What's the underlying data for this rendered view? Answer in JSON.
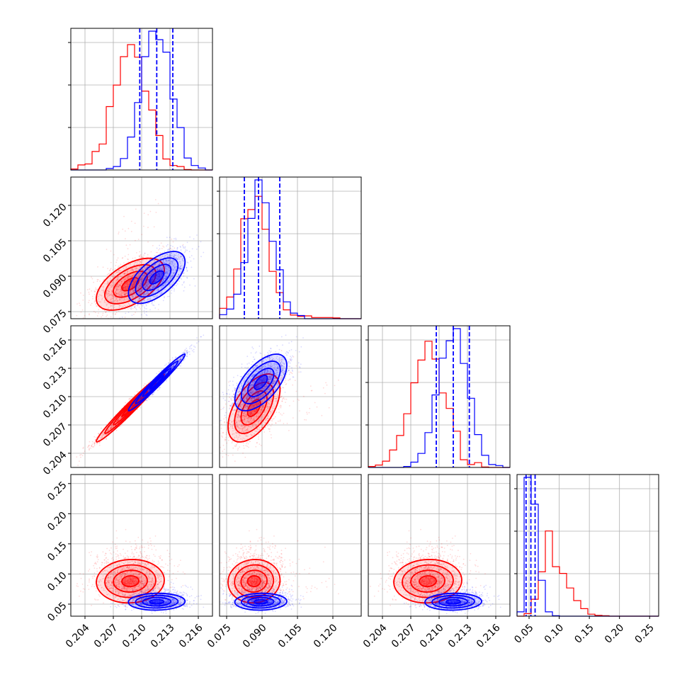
{
  "chart_data": {
    "type": "corner",
    "title": "",
    "grid": true,
    "colors": {
      "red": "#ff0000",
      "blue": "#0000ff"
    },
    "params": [
      {
        "index": 0,
        "range": [
          0.2025,
          0.2175
        ],
        "ticks": [
          0.204,
          0.207,
          0.21,
          0.213,
          0.216
        ],
        "tick_labels": [
          "0.204",
          "0.207",
          "0.210",
          "0.213",
          "0.216"
        ]
      },
      {
        "index": 1,
        "range": [
          0.072,
          0.132
        ],
        "ticks": [
          0.075,
          0.09,
          0.105,
          0.12
        ],
        "tick_labels": [
          "0.075",
          "0.090",
          "0.105",
          "0.120"
        ]
      },
      {
        "index": 2,
        "range": [
          0.2025,
          0.2175
        ],
        "ticks": [
          0.204,
          0.207,
          0.21,
          0.213,
          0.216
        ],
        "tick_labels": [
          "0.204",
          "0.207",
          "0.210",
          "0.213",
          "0.216"
        ]
      },
      {
        "index": 3,
        "range": [
          0.03,
          0.265
        ],
        "ticks": [
          0.05,
          0.1,
          0.15,
          0.2,
          0.25
        ],
        "tick_labels": [
          "0.05",
          "0.10",
          "0.15",
          "0.20",
          "0.25"
        ]
      }
    ],
    "quantiles_blue": [
      [
        0.2098,
        0.2116,
        0.2133
      ],
      [
        0.0825,
        0.0885,
        0.0975
      ],
      [
        0.2097,
        0.2115,
        0.2132
      ],
      [
        0.045,
        0.053,
        0.06
      ]
    ],
    "series": [
      {
        "color": "red",
        "mean": [
          0.2088,
          0.0866,
          0.2088,
          0.088
        ],
        "std": [
          0.0018,
          0.0055,
          0.0018,
          0.018
        ],
        "corr": [
          [
            1.0,
            0.55,
            0.98,
            0.05
          ],
          [
            0.55,
            1.0,
            0.55,
            0.05
          ],
          [
            0.98,
            0.55,
            1.0,
            0.05
          ],
          [
            0.05,
            0.05,
            0.05,
            1.0
          ]
        ]
      },
      {
        "color": "blue",
        "mean": [
          0.2116,
          0.0895,
          0.2115,
          0.054
        ],
        "std": [
          0.0015,
          0.0055,
          0.0015,
          0.007
        ],
        "corr": [
          [
            1.0,
            0.6,
            0.98,
            0.05
          ],
          [
            0.6,
            1.0,
            0.6,
            0.05
          ],
          [
            0.98,
            0.6,
            1.0,
            0.05
          ],
          [
            0.05,
            0.05,
            0.05,
            1.0
          ]
        ]
      }
    ]
  }
}
